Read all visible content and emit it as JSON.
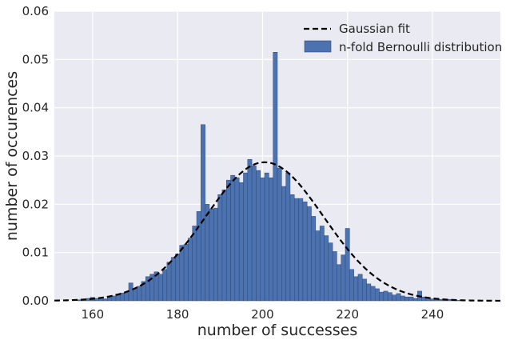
{
  "chart_data": {
    "type": "bar",
    "title": "",
    "xlabel": "number of successes",
    "ylabel": "number of occurences",
    "xlim": [
      151,
      256
    ],
    "ylim": [
      0,
      0.06
    ],
    "xticks": [
      160,
      180,
      200,
      220,
      240
    ],
    "xtick_labels": [
      "160",
      "180",
      "200",
      "220",
      "240"
    ],
    "yticks": [
      0,
      0.01,
      0.02,
      0.03,
      0.04,
      0.05,
      0.06
    ],
    "ytick_labels": [
      "0.00",
      "0.01",
      "0.02",
      "0.03",
      "0.04",
      "0.05",
      "0.06"
    ],
    "grid": true,
    "legend_position": "top-right",
    "series": [
      {
        "name": "n-fold Bernoulli distribution",
        "kind": "histogram",
        "color": "#4c72b0",
        "bin_width": 1,
        "x": [
          157,
          158,
          159,
          160,
          161,
          162,
          163,
          164,
          165,
          166,
          167,
          168,
          169,
          170,
          171,
          172,
          173,
          174,
          175,
          176,
          177,
          178,
          179,
          180,
          181,
          182,
          183,
          184,
          185,
          186,
          187,
          188,
          189,
          190,
          191,
          192,
          193,
          194,
          195,
          196,
          197,
          198,
          199,
          200,
          201,
          202,
          203,
          204,
          205,
          206,
          207,
          208,
          209,
          210,
          211,
          212,
          213,
          214,
          215,
          216,
          217,
          218,
          219,
          220,
          221,
          222,
          223,
          224,
          225,
          226,
          227,
          228,
          229,
          230,
          231,
          232,
          233,
          234,
          235,
          236,
          237,
          238,
          239,
          240,
          241,
          242,
          243,
          244,
          245,
          246
        ],
        "values": [
          0.0002,
          0.0003,
          0.0005,
          0.0007,
          0.0005,
          0.0006,
          0.0004,
          0.0007,
          0.001,
          0.0014,
          0.0016,
          0.0018,
          0.0037,
          0.0025,
          0.003,
          0.004,
          0.005,
          0.0055,
          0.006,
          0.0055,
          0.0065,
          0.008,
          0.009,
          0.0097,
          0.0115,
          0.0117,
          0.013,
          0.0155,
          0.0185,
          0.0365,
          0.02,
          0.019,
          0.0192,
          0.022,
          0.023,
          0.025,
          0.026,
          0.0255,
          0.0245,
          0.0265,
          0.0293,
          0.028,
          0.027,
          0.0255,
          0.0265,
          0.0255,
          0.0515,
          0.0275,
          0.0237,
          0.0265,
          0.022,
          0.0212,
          0.0212,
          0.0205,
          0.0195,
          0.0175,
          0.0145,
          0.0155,
          0.0135,
          0.012,
          0.0102,
          0.0075,
          0.0095,
          0.015,
          0.0065,
          0.005,
          0.0055,
          0.0045,
          0.0035,
          0.003,
          0.0025,
          0.0018,
          0.002,
          0.0017,
          0.0012,
          0.0015,
          0.001,
          0.0008,
          0.0008,
          0.0005,
          0.002,
          0.0008,
          0.0006,
          0.0004,
          0.0005,
          0.0003,
          0.0002,
          0.0003,
          0.0002,
          0.0001
        ]
      },
      {
        "name": "Gaussian fit",
        "kind": "line",
        "style": "dashed",
        "color": "#000000",
        "mean": 200.5,
        "sigma": 13.9
      }
    ]
  }
}
